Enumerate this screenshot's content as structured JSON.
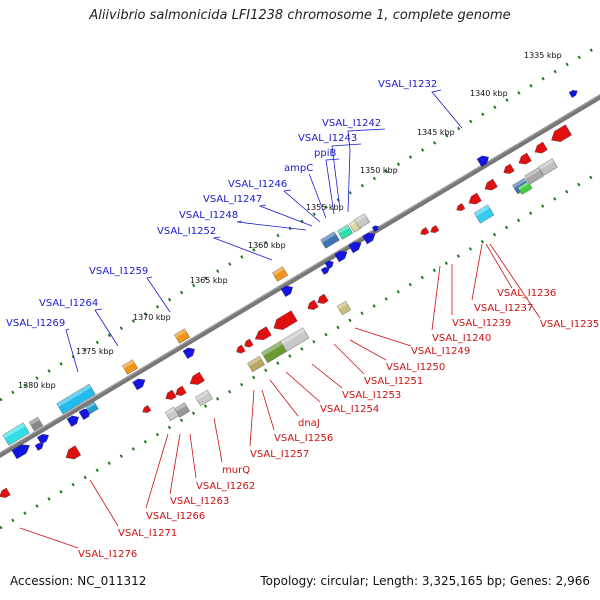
{
  "title": "Aliivibrio salmonicida LFI1238 chromosome 1, complete genome",
  "footer": {
    "accession": "Accession: NC_011312",
    "summary": "Topology: circular; Length: 3,325,165 bp; Genes: 2,966"
  },
  "colors": {
    "forward_label": "#1a1acc",
    "reverse_label": "#cc1111",
    "backbone": "#777777",
    "tick": "#1f7a1f"
  },
  "scale_labels": [
    "1335 kbp",
    "1340 kbp",
    "1345 kbp",
    "1350 kbp",
    "1355 kbp",
    "1360 kbp",
    "1365 kbp",
    "1370 kbp",
    "1375 kbp",
    "1380 kbp"
  ],
  "forward_labels": [
    "VSAL_I1232",
    "VSAL_I1242",
    "VSAL_I1243",
    "ppiB",
    "ampC",
    "VSAL_I1246",
    "VSAL_I1247",
    "VSAL_I1248",
    "VSAL_I1252",
    "VSAL_I1259",
    "VSAL_I1264",
    "VSAL_I1269"
  ],
  "reverse_labels": [
    "VSAL_I1236",
    "VSAL_I1237",
    "VSAL_I1235",
    "VSAL_I1239",
    "VSAL_I1240",
    "VSAL_I1249",
    "VSAL_I1250",
    "VSAL_I1251",
    "VSAL_I1253",
    "VSAL_I1254",
    "dnaJ",
    "VSAL_I1256",
    "VSAL_I1257",
    "murQ",
    "VSAL_I1262",
    "VSAL_I1263",
    "VSAL_I1266",
    "VSAL_I1271",
    "VSAL_I1276"
  ]
}
